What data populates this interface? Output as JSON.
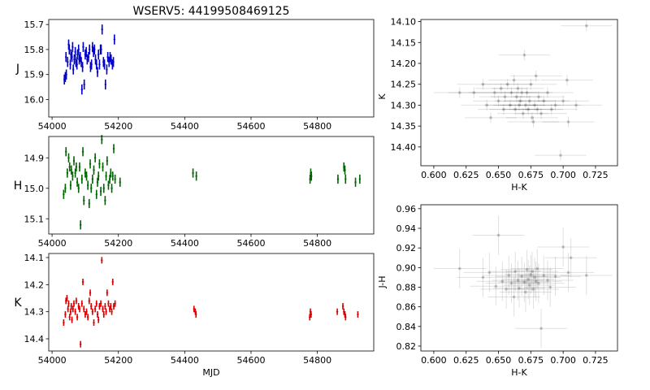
{
  "figure": {
    "title": "WSERV5: 44199508469125"
  },
  "chart_data": [
    {
      "id": "lc-J",
      "type": "scatter",
      "ylabel": "J",
      "xlabel": "",
      "xlim": [
        53990,
        54970
      ],
      "ylim": [
        16.07,
        15.68
      ],
      "inverted_y": true,
      "xticks": [
        54000,
        54200,
        54400,
        54600,
        54800
      ],
      "yticks": [
        15.7,
        15.8,
        15.9,
        16.0
      ],
      "color": "#0000cc",
      "err": 0.02,
      "points": [
        [
          54037,
          15.92
        ],
        [
          54040,
          15.91
        ],
        [
          54042,
          15.83
        ],
        [
          54043,
          15.9
        ],
        [
          54047,
          15.85
        ],
        [
          54050,
          15.78
        ],
        [
          54052,
          15.8
        ],
        [
          54055,
          15.86
        ],
        [
          54057,
          15.82
        ],
        [
          54060,
          15.83
        ],
        [
          54062,
          15.79
        ],
        [
          54064,
          15.88
        ],
        [
          54067,
          15.84
        ],
        [
          54070,
          15.81
        ],
        [
          54072,
          15.85
        ],
        [
          54075,
          15.86
        ],
        [
          54077,
          15.82
        ],
        [
          54080,
          15.8
        ],
        [
          54082,
          15.84
        ],
        [
          54085,
          15.83
        ],
        [
          54088,
          15.85
        ],
        [
          54090,
          15.96
        ],
        [
          54092,
          15.87
        ],
        [
          54094,
          15.79
        ],
        [
          54097,
          15.94
        ],
        [
          54100,
          15.82
        ],
        [
          54103,
          15.81
        ],
        [
          54106,
          15.84
        ],
        [
          54110,
          15.83
        ],
        [
          54113,
          15.8
        ],
        [
          54116,
          15.87
        ],
        [
          54119,
          15.86
        ],
        [
          54122,
          15.79
        ],
        [
          54125,
          15.81
        ],
        [
          54128,
          15.8
        ],
        [
          54131,
          15.84
        ],
        [
          54134,
          15.86
        ],
        [
          54137,
          15.89
        ],
        [
          54140,
          15.82
        ],
        [
          54143,
          15.86
        ],
        [
          54146,
          15.8
        ],
        [
          54148,
          15.8
        ],
        [
          54151,
          15.72
        ],
        [
          54155,
          15.85
        ],
        [
          54158,
          15.86
        ],
        [
          54161,
          15.94
        ],
        [
          54165,
          15.88
        ],
        [
          54168,
          15.83
        ],
        [
          54172,
          15.85
        ],
        [
          54175,
          15.83
        ],
        [
          54178,
          15.84
        ],
        [
          54182,
          15.86
        ],
        [
          54185,
          15.85
        ],
        [
          54188,
          15.76
        ]
      ]
    },
    {
      "id": "lc-H",
      "type": "scatter",
      "ylabel": "H",
      "xlabel": "",
      "xlim": [
        53990,
        54970
      ],
      "ylim": [
        15.15,
        14.83
      ],
      "inverted_y": true,
      "xticks": [
        54000,
        54200,
        54400,
        54600,
        54800
      ],
      "yticks": [
        14.9,
        15.0,
        15.1
      ],
      "color": "#006600",
      "err": 0.015,
      "points": [
        [
          54035,
          15.02
        ],
        [
          54040,
          15.0
        ],
        [
          54042,
          14.88
        ],
        [
          54046,
          14.95
        ],
        [
          54050,
          14.9
        ],
        [
          54053,
          14.93
        ],
        [
          54056,
          14.99
        ],
        [
          54058,
          14.94
        ],
        [
          54062,
          14.96
        ],
        [
          54066,
          14.91
        ],
        [
          54070,
          14.95
        ],
        [
          54073,
          14.93
        ],
        [
          54076,
          14.98
        ],
        [
          54080,
          15.0
        ],
        [
          54083,
          14.93
        ],
        [
          54086,
          15.12
        ],
        [
          54090,
          14.97
        ],
        [
          54093,
          14.88
        ],
        [
          54096,
          15.04
        ],
        [
          54100,
          14.95
        ],
        [
          54104,
          14.96
        ],
        [
          54108,
          14.99
        ],
        [
          54112,
          15.05
        ],
        [
          54115,
          14.92
        ],
        [
          54118,
          15.0
        ],
        [
          54122,
          14.97
        ],
        [
          54126,
          14.94
        ],
        [
          54130,
          14.9
        ],
        [
          54134,
          15.02
        ],
        [
          54137,
          14.98
        ],
        [
          54140,
          14.96
        ],
        [
          54143,
          14.92
        ],
        [
          54147,
          15.01
        ],
        [
          54150,
          14.84
        ],
        [
          54153,
          14.93
        ],
        [
          54156,
          15.0
        ],
        [
          54160,
          15.04
        ],
        [
          54163,
          14.96
        ],
        [
          54166,
          14.91
        ],
        [
          54170,
          14.99
        ],
        [
          54174,
          14.97
        ],
        [
          54177,
          14.95
        ],
        [
          54180,
          15.0
        ],
        [
          54183,
          14.96
        ],
        [
          54186,
          14.87
        ],
        [
          54190,
          14.97
        ],
        [
          54205,
          14.98
        ],
        [
          54425,
          14.95
        ],
        [
          54435,
          14.96
        ],
        [
          54778,
          14.97
        ],
        [
          54780,
          14.95
        ],
        [
          54782,
          14.96
        ],
        [
          54862,
          14.97
        ],
        [
          54880,
          14.93
        ],
        [
          54883,
          14.94
        ],
        [
          54885,
          14.97
        ],
        [
          54915,
          14.98
        ],
        [
          54928,
          14.97
        ]
      ]
    },
    {
      "id": "lc-K",
      "type": "scatter",
      "ylabel": "K",
      "xlabel": "MJD",
      "xlim": [
        53990,
        54970
      ],
      "ylim": [
        14.445,
        14.085
      ],
      "inverted_y": true,
      "xticks": [
        54000,
        54200,
        54400,
        54600,
        54800
      ],
      "yticks": [
        14.1,
        14.2,
        14.3,
        14.4
      ],
      "color": "#dd0000",
      "err": 0.012,
      "points": [
        [
          54035,
          14.34
        ],
        [
          54040,
          14.31
        ],
        [
          54042,
          14.26
        ],
        [
          54045,
          14.25
        ],
        [
          54048,
          14.29
        ],
        [
          54050,
          14.27
        ],
        [
          54053,
          14.32
        ],
        [
          54056,
          14.3
        ],
        [
          54058,
          14.28
        ],
        [
          54060,
          14.33
        ],
        [
          54063,
          14.29
        ],
        [
          54066,
          14.27
        ],
        [
          54070,
          14.3
        ],
        [
          54073,
          14.26
        ],
        [
          54076,
          14.32
        ],
        [
          54080,
          14.28
        ],
        [
          54083,
          14.29
        ],
        [
          54086,
          14.42
        ],
        [
          54090,
          14.27
        ],
        [
          54093,
          14.19
        ],
        [
          54096,
          14.29
        ],
        [
          54100,
          14.31
        ],
        [
          54104,
          14.3
        ],
        [
          54108,
          14.32
        ],
        [
          54112,
          14.26
        ],
        [
          54115,
          14.23
        ],
        [
          54118,
          14.28
        ],
        [
          54122,
          14.3
        ],
        [
          54126,
          14.34
        ],
        [
          54130,
          14.29
        ],
        [
          54134,
          14.27
        ],
        [
          54137,
          14.31
        ],
        [
          54140,
          14.33
        ],
        [
          54143,
          14.28
        ],
        [
          54147,
          14.27
        ],
        [
          54150,
          14.11
        ],
        [
          54153,
          14.29
        ],
        [
          54156,
          14.31
        ],
        [
          54160,
          14.28
        ],
        [
          54163,
          14.3
        ],
        [
          54166,
          14.23
        ],
        [
          54170,
          14.27
        ],
        [
          54174,
          14.29
        ],
        [
          54177,
          14.28
        ],
        [
          54180,
          14.3
        ],
        [
          54183,
          14.19
        ],
        [
          54186,
          14.28
        ],
        [
          54190,
          14.27
        ],
        [
          54428,
          14.29
        ],
        [
          54432,
          14.3
        ],
        [
          54434,
          14.31
        ],
        [
          54777,
          14.32
        ],
        [
          54779,
          14.3
        ],
        [
          54781,
          14.31
        ],
        [
          54860,
          14.3
        ],
        [
          54877,
          14.28
        ],
        [
          54880,
          14.3
        ],
        [
          54883,
          14.31
        ],
        [
          54885,
          14.32
        ],
        [
          54922,
          14.31
        ]
      ]
    },
    {
      "id": "cmd-K",
      "type": "scatter",
      "ylabel": "K",
      "xlabel": "H-K",
      "xlim": [
        0.59,
        0.742
      ],
      "ylim": [
        14.445,
        14.095
      ],
      "inverted_y": true,
      "xticks": [
        0.6,
        0.625,
        0.65,
        0.675,
        0.7,
        0.725
      ],
      "yticks": [
        14.1,
        14.15,
        14.2,
        14.25,
        14.3,
        14.35,
        14.4
      ],
      "color": "#000000",
      "xerr": 0.02,
      "yerr": 0.013,
      "points": [
        [
          0.62,
          14.27
        ],
        [
          0.631,
          14.27
        ],
        [
          0.638,
          14.25
        ],
        [
          0.641,
          14.3
        ],
        [
          0.644,
          14.33
        ],
        [
          0.647,
          14.27
        ],
        [
          0.65,
          14.29
        ],
        [
          0.652,
          14.26
        ],
        [
          0.654,
          14.31
        ],
        [
          0.655,
          14.28
        ],
        [
          0.657,
          14.25
        ],
        [
          0.659,
          14.3
        ],
        [
          0.66,
          14.27
        ],
        [
          0.662,
          14.24
        ],
        [
          0.663,
          14.31
        ],
        [
          0.664,
          14.28
        ],
        [
          0.665,
          14.26
        ],
        [
          0.666,
          14.3
        ],
        [
          0.667,
          14.29
        ],
        [
          0.668,
          14.27
        ],
        [
          0.669,
          14.32
        ],
        [
          0.67,
          14.18
        ],
        [
          0.671,
          14.3
        ],
        [
          0.672,
          14.27
        ],
        [
          0.673,
          14.31
        ],
        [
          0.674,
          14.29
        ],
        [
          0.675,
          14.25
        ],
        [
          0.676,
          14.33
        ],
        [
          0.677,
          14.34
        ],
        [
          0.678,
          14.3
        ],
        [
          0.679,
          14.23
        ],
        [
          0.68,
          14.31
        ],
        [
          0.681,
          14.28
        ],
        [
          0.683,
          14.32
        ],
        [
          0.685,
          14.29
        ],
        [
          0.688,
          14.27
        ],
        [
          0.691,
          14.31
        ],
        [
          0.694,
          14.3
        ],
        [
          0.698,
          14.42
        ],
        [
          0.7,
          14.29
        ],
        [
          0.703,
          14.24
        ],
        [
          0.704,
          14.34
        ],
        [
          0.71,
          14.3
        ],
        [
          0.718,
          14.11
        ]
      ]
    },
    {
      "id": "ccd",
      "type": "scatter",
      "ylabel": "J-H",
      "xlabel": "H-K",
      "xlim": [
        0.59,
        0.742
      ],
      "ylim": [
        0.815,
        0.964
      ],
      "inverted_y": false,
      "xticks": [
        0.6,
        0.625,
        0.65,
        0.675,
        0.7,
        0.725
      ],
      "yticks": [
        0.82,
        0.84,
        0.86,
        0.88,
        0.9,
        0.92,
        0.94,
        0.96
      ],
      "color": "#000000",
      "xerr": 0.02,
      "yerr": 0.02,
      "points": [
        [
          0.62,
          0.899
        ],
        [
          0.638,
          0.89
        ],
        [
          0.643,
          0.895
        ],
        [
          0.648,
          0.881
        ],
        [
          0.65,
          0.933
        ],
        [
          0.653,
          0.886
        ],
        [
          0.656,
          0.878
        ],
        [
          0.658,
          0.892
        ],
        [
          0.66,
          0.884
        ],
        [
          0.662,
          0.87
        ],
        [
          0.663,
          0.896
        ],
        [
          0.665,
          0.887
        ],
        [
          0.666,
          0.879
        ],
        [
          0.668,
          0.891
        ],
        [
          0.67,
          0.885
        ],
        [
          0.671,
          0.875
        ],
        [
          0.672,
          0.898
        ],
        [
          0.673,
          0.888
        ],
        [
          0.674,
          0.882
        ],
        [
          0.675,
          0.893
        ],
        [
          0.676,
          0.896
        ],
        [
          0.677,
          0.878
        ],
        [
          0.678,
          0.89
        ],
        [
          0.679,
          0.886
        ],
        [
          0.68,
          0.899
        ],
        [
          0.681,
          0.884
        ],
        [
          0.683,
          0.838
        ],
        [
          0.685,
          0.892
        ],
        [
          0.688,
          0.887
        ],
        [
          0.69,
          0.88
        ],
        [
          0.694,
          0.891
        ],
        [
          0.7,
          0.921
        ],
        [
          0.704,
          0.895
        ],
        [
          0.706,
          0.91
        ],
        [
          0.718,
          0.892
        ]
      ]
    }
  ]
}
